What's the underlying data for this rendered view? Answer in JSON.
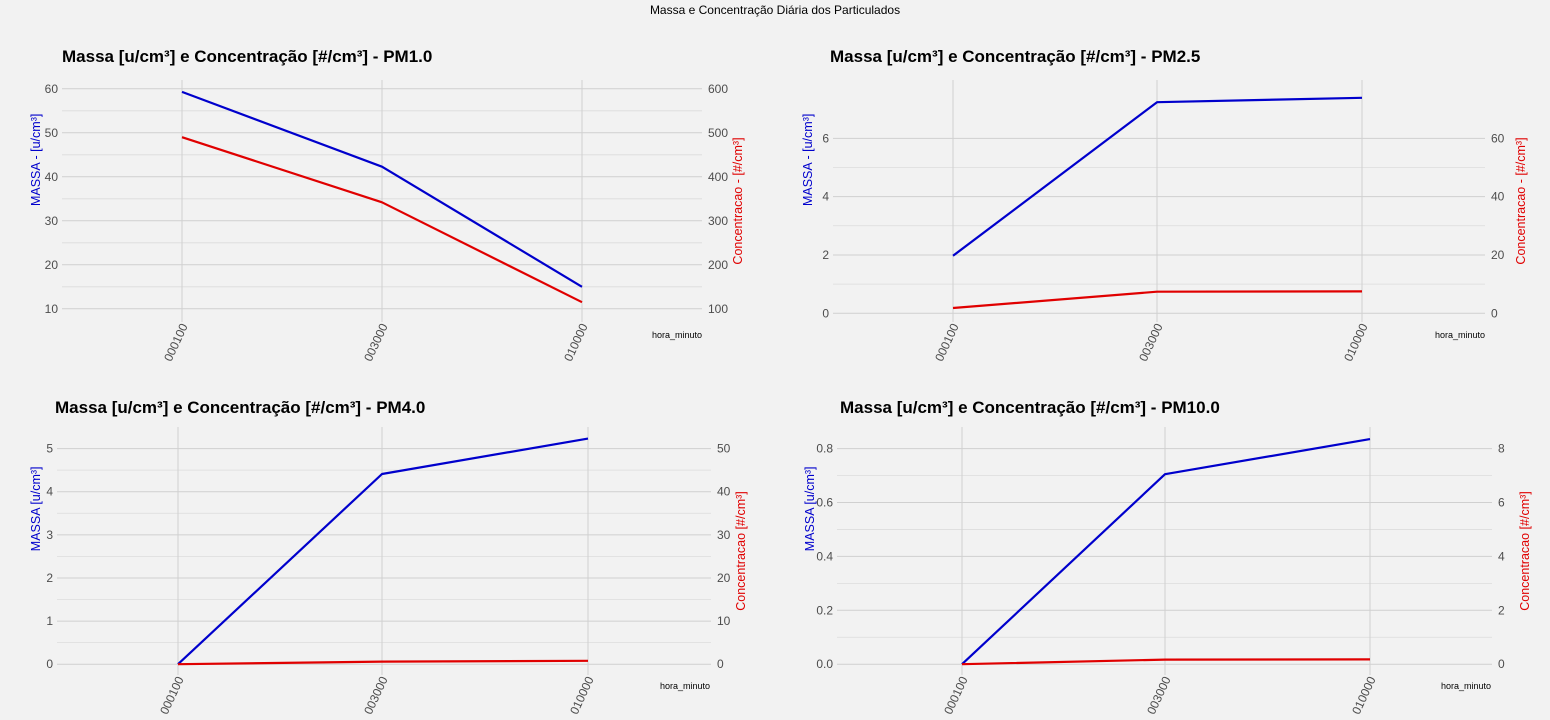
{
  "figure_title": "Massa e Concentração Diária dos Particulados",
  "colors": {
    "massa": "#0000cc",
    "concentracao": "#e00000",
    "grid": "#d0d0d0",
    "panel_bg": "#f2f2f2"
  },
  "chart_data": [
    {
      "type": "line",
      "title": "Massa [u/cm³] e Concentração [#/cm³] - PM1.0",
      "xlabel": "hora_minuto",
      "ylabel_left": "MASSA - [u/cm³]",
      "ylabel_right": "Concentracao - [#/cm³]",
      "categories": [
        "000100",
        "003000",
        "010000"
      ],
      "y_left": {
        "ticks": [
          10,
          20,
          30,
          40,
          50,
          60
        ],
        "range": [
          7,
          62
        ]
      },
      "y_right": {
        "ticks": [
          100,
          200,
          300,
          400,
          500,
          600
        ]
      },
      "secondary_scale": 10,
      "series": [
        {
          "axis": "left",
          "values": [
            59.3,
            42.3,
            15.0
          ]
        },
        {
          "axis": "right",
          "values": [
            490,
            342,
            115
          ]
        }
      ]
    },
    {
      "type": "line",
      "title": "Massa [u/cm³] e Concentração [#/cm³] - PM2.5",
      "xlabel": "hora_minuto",
      "ylabel_left": "MASSA - [u/cm³]",
      "ylabel_right": "Concentracao - [#/cm³]",
      "categories": [
        "000100",
        "003000",
        "010000"
      ],
      "y_left": {
        "ticks": [
          0,
          2,
          4,
          6
        ],
        "range": [
          -0.3,
          8.0
        ]
      },
      "y_right": {
        "ticks": [
          0,
          20,
          40,
          60
        ]
      },
      "secondary_scale": 10,
      "series": [
        {
          "axis": "left",
          "values": [
            1.97,
            7.24,
            7.39
          ]
        },
        {
          "axis": "right",
          "values": [
            1.8,
            7.4,
            7.5
          ]
        }
      ]
    },
    {
      "type": "line",
      "title": "Massa [u/cm³] e Concentração [#/cm³] - PM4.0",
      "xlabel": "hora_minuto",
      "ylabel_left": "MASSA [u/cm³]",
      "ylabel_right": "Concentracao [#/cm³]",
      "categories": [
        "000100",
        "003000",
        "010000"
      ],
      "y_left": {
        "ticks": [
          0,
          1,
          2,
          3,
          4,
          5
        ],
        "range": [
          -0.25,
          5.5
        ]
      },
      "y_right": {
        "ticks": [
          0,
          10,
          20,
          30,
          40,
          50
        ]
      },
      "secondary_scale": 10,
      "series": [
        {
          "axis": "left",
          "values": [
            0.0,
            4.41,
            5.23
          ]
        },
        {
          "axis": "right",
          "values": [
            0.0,
            0.6,
            0.8
          ]
        }
      ]
    },
    {
      "type": "line",
      "title": "Massa [u/cm³] e Concentração [#/cm³] - PM10.0",
      "xlabel": "hora_minuto",
      "ylabel_left": "MASSA [u/cm³]",
      "ylabel_right": "Concentracao [#/cm³]",
      "categories": [
        "000100",
        "003000",
        "010000"
      ],
      "y_left": {
        "ticks": [
          0.0,
          0.2,
          0.4,
          0.6,
          0.8
        ],
        "range": [
          -0.04,
          0.88
        ]
      },
      "y_right": {
        "ticks": [
          0,
          2,
          4,
          6,
          8
        ]
      },
      "secondary_scale": 10,
      "series": [
        {
          "axis": "left",
          "values": [
            0.0,
            0.705,
            0.835
          ]
        },
        {
          "axis": "right",
          "values": [
            0.0,
            0.17,
            0.18
          ]
        }
      ]
    }
  ]
}
